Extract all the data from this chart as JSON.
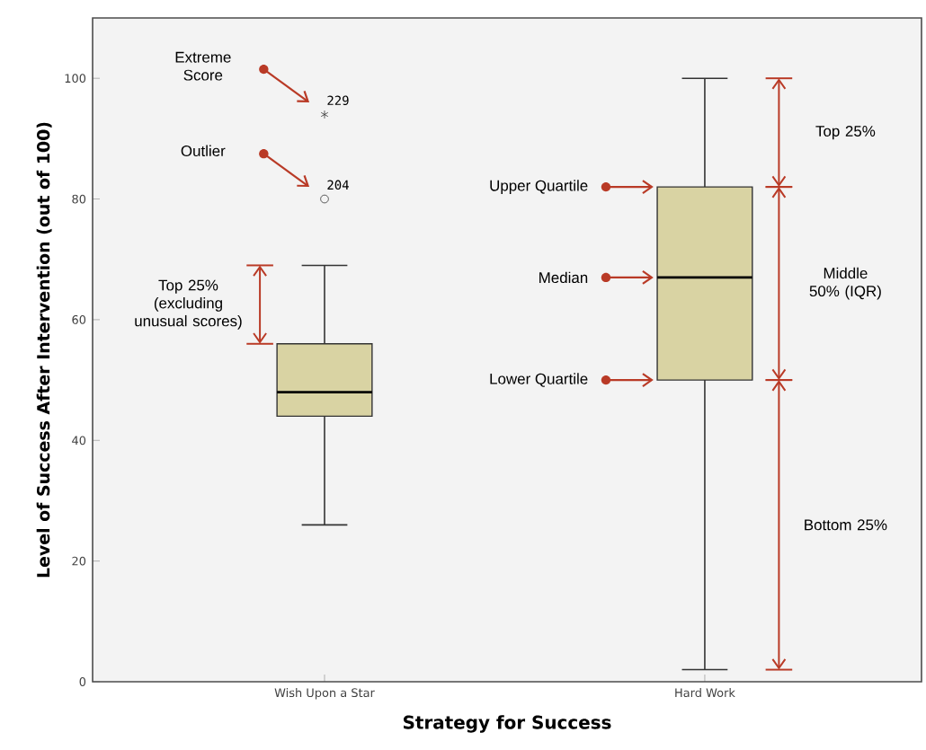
{
  "chart_data": {
    "type": "box",
    "xlabel": "Strategy for Success",
    "ylabel": "Level of Success After Intervention (out of 100)",
    "categories": [
      "Wish Upon a Star",
      "Hard Work"
    ],
    "boxes": [
      {
        "low": 26,
        "q1": 44,
        "median": 48,
        "q3": 56,
        "high": 69,
        "outliers": [
          80,
          94
        ]
      },
      {
        "low": 2,
        "q1": 50,
        "median": 67,
        "q3": 82,
        "high": 100
      }
    ],
    "color": "#d9d3a3",
    "ylim": [
      0,
      110
    ],
    "yticks": [
      0,
      20,
      40,
      60,
      80,
      100
    ],
    "annotations": [
      "Extreme Score",
      "229",
      "Outlier",
      "204",
      "Top 25% (excluding unusual scores)",
      "Upper Quartile",
      "Median",
      "Lower Quartile",
      "Top 25%",
      "Middle 50% (IQR)",
      "Bottom 25%"
    ]
  }
}
